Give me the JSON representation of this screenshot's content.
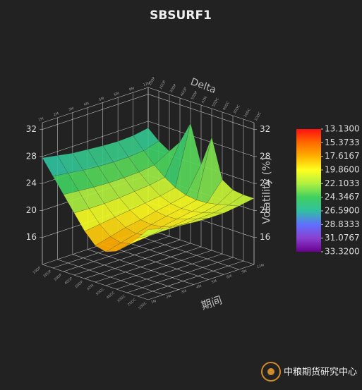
{
  "chart_data": {
    "type": "surface3d",
    "title": "SBSURF1",
    "x_label": "Delta",
    "y_label": "期间",
    "z_label": "Volatility (%)",
    "x_categories": [
      "10DP",
      "20DP",
      "30DP",
      "40DP",
      "50DP",
      "ATM",
      "50DC",
      "40DC",
      "30DC",
      "20DC",
      "10DC"
    ],
    "y_categories": [
      "1M",
      "2M",
      "3M",
      "4M",
      "5M",
      "6M",
      "9M",
      "12M"
    ],
    "z": [
      [
        27.8,
        25.6,
        23.4,
        21.2,
        19.0,
        17.4,
        17.0,
        17.6,
        19.0,
        20.6,
        22.4
      ],
      [
        27.4,
        25.3,
        23.2,
        21.1,
        19.3,
        18.0,
        17.6,
        18.0,
        19.2,
        20.4,
        21.8
      ],
      [
        27.0,
        25.0,
        23.0,
        21.1,
        19.6,
        18.6,
        18.2,
        18.5,
        19.4,
        20.4,
        21.4
      ],
      [
        26.8,
        24.8,
        22.9,
        21.2,
        19.9,
        19.0,
        18.8,
        19.0,
        19.6,
        20.4,
        21.2
      ],
      [
        26.6,
        24.7,
        22.9,
        21.4,
        20.2,
        19.5,
        19.3,
        19.4,
        19.9,
        20.5,
        21.1
      ],
      [
        26.5,
        24.7,
        23.0,
        21.6,
        20.5,
        19.9,
        19.7,
        19.8,
        20.1,
        20.6,
        21.1
      ],
      [
        26.6,
        24.9,
        23.3,
        22.0,
        21.0,
        20.4,
        20.2,
        20.3,
        20.6,
        21.0,
        21.4
      ],
      [
        27.0,
        25.6,
        24.6,
        26.5,
        29.8,
        24.2,
        28.8,
        23.0,
        22.0,
        21.8,
        21.8
      ]
    ],
    "zlim": [
      12,
      33
    ],
    "zticks": [
      16,
      20,
      24,
      28,
      32
    ],
    "colorbar": {
      "ticks": [
        {
          "value": 13.13,
          "label": "13.1300"
        },
        {
          "value": 15.3733,
          "label": "15.3733"
        },
        {
          "value": 17.6167,
          "label": "17.6167"
        },
        {
          "value": 19.86,
          "label": "19.8600"
        },
        {
          "value": 22.1033,
          "label": "22.1033"
        },
        {
          "value": 24.3467,
          "label": "24.3467"
        },
        {
          "value": 26.59,
          "label": "26.5900"
        },
        {
          "value": 28.8333,
          "label": "28.8333"
        },
        {
          "value": 31.0767,
          "label": "31.0767"
        },
        {
          "value": 33.32,
          "label": "33.3200"
        }
      ],
      "colors": [
        "#ff1010",
        "#ff6a00",
        "#ffb000",
        "#ffff20",
        "#b0f040",
        "#40d060",
        "#30c0a0",
        "#6070ff",
        "#8a40d0",
        "#6a0090"
      ]
    },
    "grid": true,
    "watermark": "中粮期货研究中心"
  }
}
